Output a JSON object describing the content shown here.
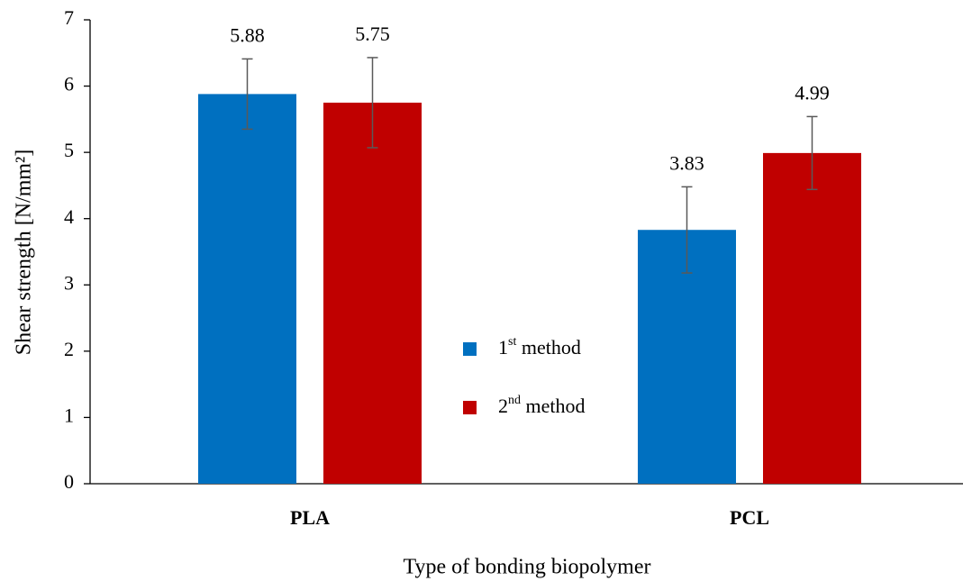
{
  "chart_data": {
    "type": "bar",
    "x_label": "Type of bonding  biopolymer",
    "y_label": "Shear strength  [N/mm²]",
    "categories": [
      "PLA",
      "PCL"
    ],
    "series": [
      {
        "name": "1st method",
        "color": "#0070c0",
        "values": [
          5.88,
          3.83
        ],
        "errors": [
          0.53,
          0.65
        ]
      },
      {
        "name": "2nd method",
        "color": "#c00000",
        "values": [
          5.75,
          4.99
        ],
        "errors": [
          0.68,
          0.55
        ]
      }
    ],
    "ylim": [
      0,
      7
    ],
    "yticks": [
      0,
      1,
      2,
      3,
      4,
      5,
      6,
      7
    ],
    "grid": false,
    "legend": "center"
  }
}
